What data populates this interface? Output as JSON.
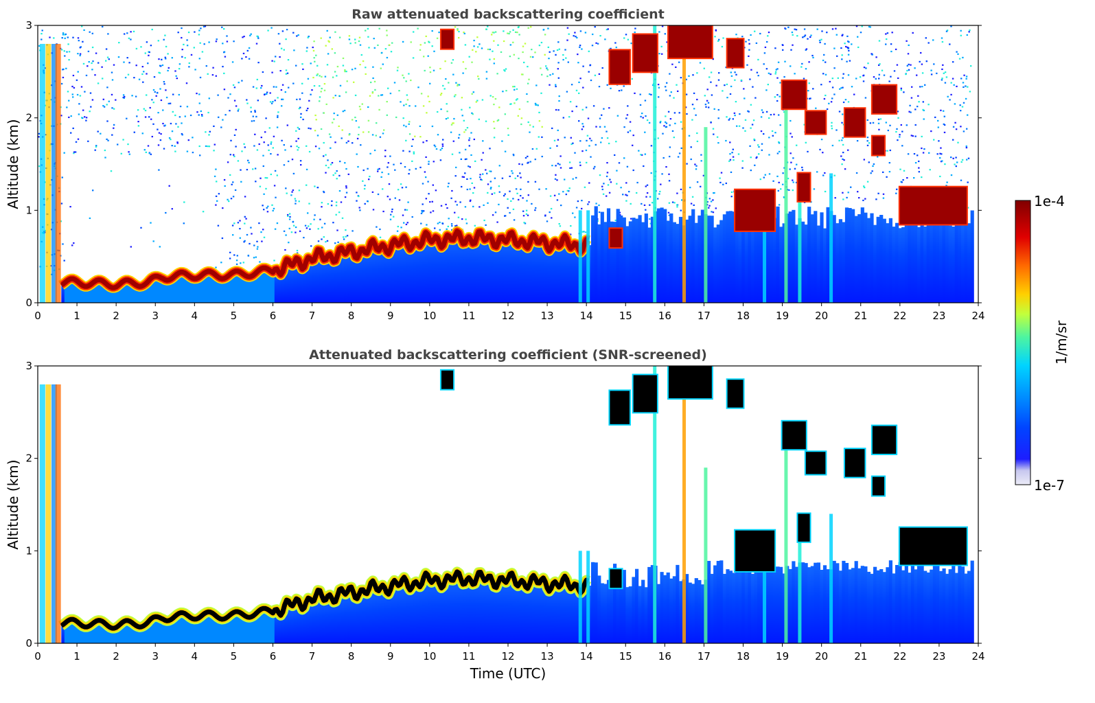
{
  "chart_data": [
    {
      "type": "heatmap",
      "title": "Raw attenuated backscattering coefficient",
      "ylabel": "Altitude (km)",
      "xlabel": "",
      "xlim": [
        0,
        24
      ],
      "ylim": [
        0,
        3
      ],
      "xticks": [
        "0",
        "1",
        "2",
        "3",
        "4",
        "5",
        "6",
        "7",
        "8",
        "9",
        "10",
        "11",
        "12",
        "13",
        "14",
        "15",
        "16",
        "17",
        "18",
        "19",
        "20",
        "21",
        "22",
        "23",
        "24"
      ],
      "yticks": [
        "0",
        "1",
        "2",
        "3"
      ],
      "boundary_layer_top_km": [
        {
          "t": 0.6,
          "h": 0.22
        },
        {
          "t": 1.0,
          "h": 0.22
        },
        {
          "t": 2.0,
          "h": 0.2
        },
        {
          "t": 2.8,
          "h": 0.22
        },
        {
          "t": 3.2,
          "h": 0.28
        },
        {
          "t": 4.0,
          "h": 0.3
        },
        {
          "t": 5.0,
          "h": 0.3
        },
        {
          "t": 6.0,
          "h": 0.35
        },
        {
          "t": 7.0,
          "h": 0.48
        },
        {
          "t": 8.0,
          "h": 0.55
        },
        {
          "t": 9.0,
          "h": 0.62
        },
        {
          "t": 10.0,
          "h": 0.68
        },
        {
          "t": 11.0,
          "h": 0.7
        },
        {
          "t": 12.0,
          "h": 0.68
        },
        {
          "t": 13.0,
          "h": 0.65
        },
        {
          "t": 14.0,
          "h": 0.62
        },
        {
          "t": 18.0,
          "h": 0.95
        },
        {
          "t": 22.0,
          "h": 1.05
        },
        {
          "t": 23.0,
          "h": 0.98
        },
        {
          "t": 23.8,
          "h": 0.85
        }
      ],
      "grid": false
    },
    {
      "type": "heatmap",
      "title": "Attenuated backscattering coefficient (SNR-screened)",
      "ylabel": "Altitude (km)",
      "xlabel": "Time (UTC)",
      "xlim": [
        0,
        24
      ],
      "ylim": [
        0,
        3
      ],
      "xticks": [
        "0",
        "1",
        "2",
        "3",
        "4",
        "5",
        "6",
        "7",
        "8",
        "9",
        "10",
        "11",
        "12",
        "13",
        "14",
        "15",
        "16",
        "17",
        "18",
        "19",
        "20",
        "21",
        "22",
        "23",
        "24"
      ],
      "yticks": [
        "0",
        "1",
        "2",
        "3"
      ],
      "grid": false
    }
  ],
  "colorbar": {
    "label": "1/m/sr",
    "max_label": "1e-4",
    "min_label": "1e-7",
    "colors": [
      "#ebebf7",
      "#c7c7ef",
      "#8f8ff0",
      "#1d1dff",
      "#0044ff",
      "#0077ff",
      "#00aaff",
      "#00d4ff",
      "#1ff0d8",
      "#4ef5a0",
      "#8cff6b",
      "#c2ff3c",
      "#eef516",
      "#ffd000",
      "#ff9f00",
      "#ff6a00",
      "#ff3000",
      "#e00000",
      "#a00000",
      "#800000"
    ]
  }
}
